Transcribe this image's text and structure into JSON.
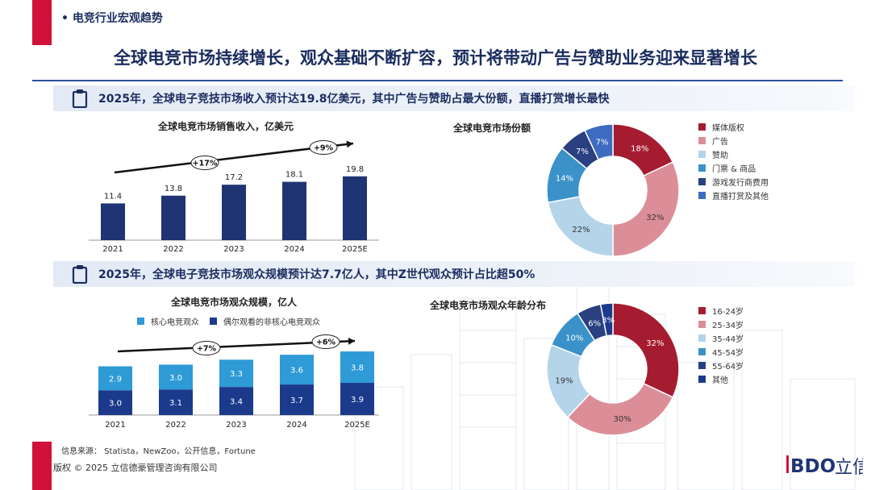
{
  "section_tag": "电竞行业宏观趋势",
  "main_title": "全球电竞市场持续增长，观众基础不断扩容，预计将带动广告与赞助业务迎来显著增长",
  "band1": {
    "text": "2025年，全球电子竞技市场收入预计达19.8亿美元，其中广告与赞助占最大份额，直播打赏增长最快"
  },
  "band2": {
    "text": "2025年，全球电子竞技市场观众规模预计达7.7亿人，其中Z世代观众预计占比超50%"
  },
  "footer": {
    "source": "信息来源： Statista，NewZoo，公开信息，Fortune",
    "copyright": "版权 © 2025 立信德豪管理咨询有限公司"
  },
  "logo": {
    "text": "IBDO",
    "cn": "立信"
  },
  "colors": {
    "accent_red": "#d0123a",
    "navy": "#1f3473",
    "light_blue": "#2e9ad6",
    "title_blue": "#1a2c5e"
  },
  "chart_data": [
    {
      "id": "revenue",
      "type": "bar",
      "title": "全球电竞市场销售收入，亿美元",
      "categories": [
        "2021",
        "2022",
        "2023",
        "2024",
        "2025E"
      ],
      "values": [
        11.4,
        13.8,
        17.2,
        18.1,
        19.8
      ],
      "value_labels": [
        "11.4",
        "13.8",
        "17.2",
        "18.1",
        "19.8"
      ],
      "ylim": [
        0,
        20
      ],
      "color": "#1f3473",
      "annotations": [
        "+17%",
        "+9%"
      ]
    },
    {
      "id": "market-share",
      "type": "pie",
      "title": "全球电竞市场份额",
      "labels": [
        "媒体版权",
        "广告",
        "赞助",
        "门票 & 商品",
        "游戏发行商费用",
        "直播打赏及其他"
      ],
      "values": [
        18,
        32,
        22,
        14,
        7,
        7
      ],
      "value_labels": [
        "18%",
        "32%",
        "22%",
        "14%",
        "7%",
        "7%"
      ],
      "colors": [
        "#a51c30",
        "#dc8e98",
        "#b4d4ea",
        "#3a92c9",
        "#2a4080",
        "#3d6bc0"
      ],
      "legend": "right"
    },
    {
      "id": "audience",
      "type": "bar",
      "stacked": true,
      "title": "全球电竞市场观众规模，亿人",
      "categories": [
        "2021",
        "2022",
        "2023",
        "2024",
        "2025E"
      ],
      "series": [
        {
          "name": "核心电竞观众",
          "values": [
            2.9,
            3.0,
            3.3,
            3.6,
            3.8
          ],
          "labels": [
            "2.9",
            "3.0",
            "3.3",
            "3.6",
            "3.8"
          ],
          "color": "#2e9ad6"
        },
        {
          "name": "偶尔观看的非核心电竞观众",
          "values": [
            3.0,
            3.1,
            3.4,
            3.7,
            3.9
          ],
          "labels": [
            "3.0",
            "3.1",
            "3.4",
            "3.7",
            "3.9"
          ],
          "color": "#1c3a8c"
        }
      ],
      "ylim": [
        0,
        8
      ],
      "annotations": [
        "+7%",
        "+6%"
      ],
      "legend": "top"
    },
    {
      "id": "age-distribution",
      "type": "pie",
      "title": "全球电竞市场观众年龄分布",
      "labels": [
        "16-24岁",
        "25-34岁",
        "35-44岁",
        "45-54岁",
        "55-64岁",
        "其他"
      ],
      "values": [
        32,
        30,
        19,
        10,
        6,
        3
      ],
      "value_labels": [
        "32%",
        "30%",
        "19%",
        "10%",
        "6%",
        "3%"
      ],
      "colors": [
        "#a51c30",
        "#dc8e98",
        "#b4d4ea",
        "#3a92c9",
        "#2a4080",
        "#1c3a8c"
      ],
      "legend": "right"
    }
  ]
}
